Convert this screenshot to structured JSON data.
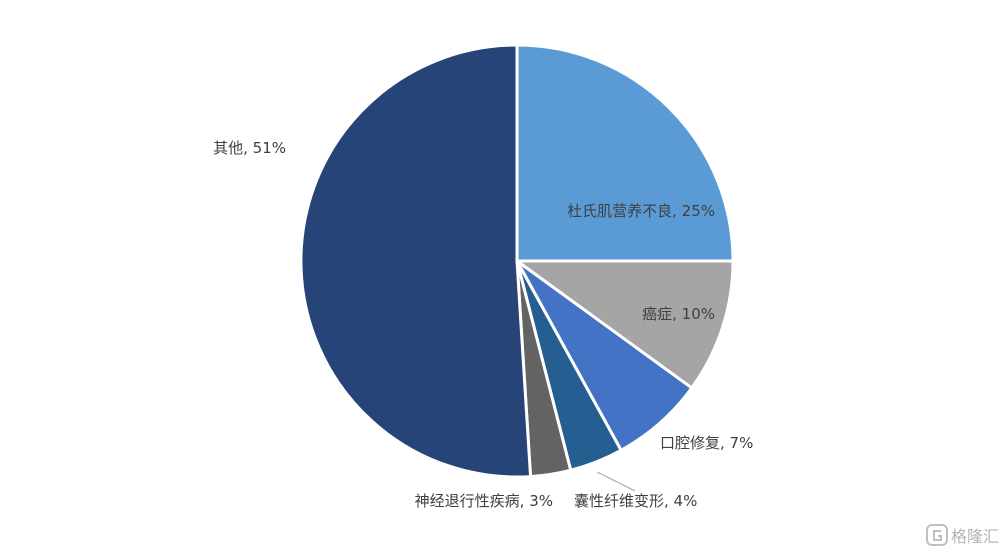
{
  "chart_data": {
    "type": "pie",
    "title": "",
    "slices": [
      {
        "label": "杜氏肌营养不良, 25%",
        "name": "杜氏肌营养不良",
        "value": 25,
        "color": "#5b9bd5"
      },
      {
        "label": "癌症, 10%",
        "name": "癌症",
        "value": 10,
        "color": "#a5a5a5"
      },
      {
        "label": "口腔修复, 7%",
        "name": "口腔修复",
        "value": 7,
        "color": "#4472c4"
      },
      {
        "label": "囊性纤维变形, 4%",
        "name": "囊性纤维变形",
        "value": 4,
        "color": "#255e91"
      },
      {
        "label": "神经退行性疾病, 3%",
        "name": "神经退行性疾病",
        "value": 3,
        "color": "#636363"
      },
      {
        "label": "其他, 51%",
        "name": "其他",
        "value": 51,
        "color": "#264478"
      }
    ]
  },
  "watermark": {
    "text": "格隆汇",
    "icon": "g-logo-icon"
  }
}
